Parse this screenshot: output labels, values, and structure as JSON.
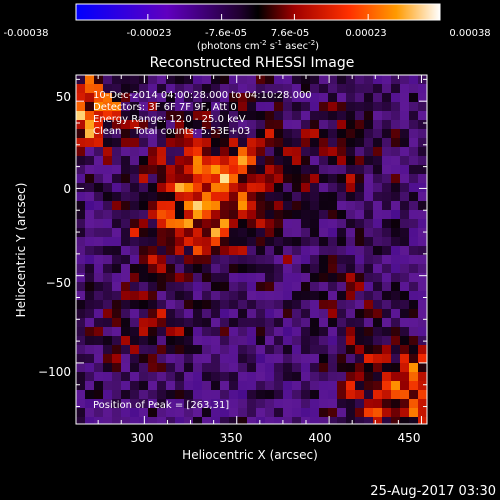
{
  "colorbar": {
    "tick_labels": [
      "-0.00038",
      "-0.00023",
      "-7.6e-05",
      "7.6e-05",
      "0.00023",
      "0.00038"
    ],
    "tick_values": [
      -0.00038,
      -0.00023,
      -7.6e-05,
      7.6e-05,
      0.00023,
      0.00038
    ],
    "range": [
      -0.00038,
      0.00038
    ],
    "units_line1": "(photons cm",
    "units_sup1": "-2",
    "units_line2": " s",
    "units_sup2": "-1",
    "units_line3": " asec",
    "units_sup3": "-2",
    "units_line4": ")"
  },
  "chart_data": {
    "type": "heatmap",
    "title": "Reconstructed RHESSI Image",
    "xlabel": "Heliocentric X (arcsec)",
    "ylabel": "Heliocentric Y (arcsec)",
    "xlim": [
      263,
      453
    ],
    "ylim": [
      -135,
      65
    ],
    "x_ticks": [
      300,
      350,
      400,
      450
    ],
    "y_ticks": [
      -100,
      -50,
      0,
      50
    ],
    "x_tick_labels": [
      "300",
      "350",
      "400",
      "450"
    ],
    "y_tick_labels": [
      "−100",
      "−50",
      "0",
      "50"
    ],
    "colormap": [
      "#0000ff",
      "#6b00b0",
      "#2a0040",
      "#000000",
      "#b00000",
      "#ff3000",
      "#ff9000",
      "#ffff80",
      "#ffffff"
    ],
    "annotations": [
      "10-Dec-2014 04:00:28.000 to 04:10:28.000",
      "Detectors: 3F 6F 7F 9F, Att 0",
      "Energy Range: 12.0 - 25.0 keV",
      "Clean    Total counts: 5.53E+03"
    ],
    "peak_label": "Position of Peak = [263,31]",
    "peak": [
      263,
      31
    ]
  },
  "footer": {
    "timestamp": "25-Aug-2017 03:30"
  }
}
